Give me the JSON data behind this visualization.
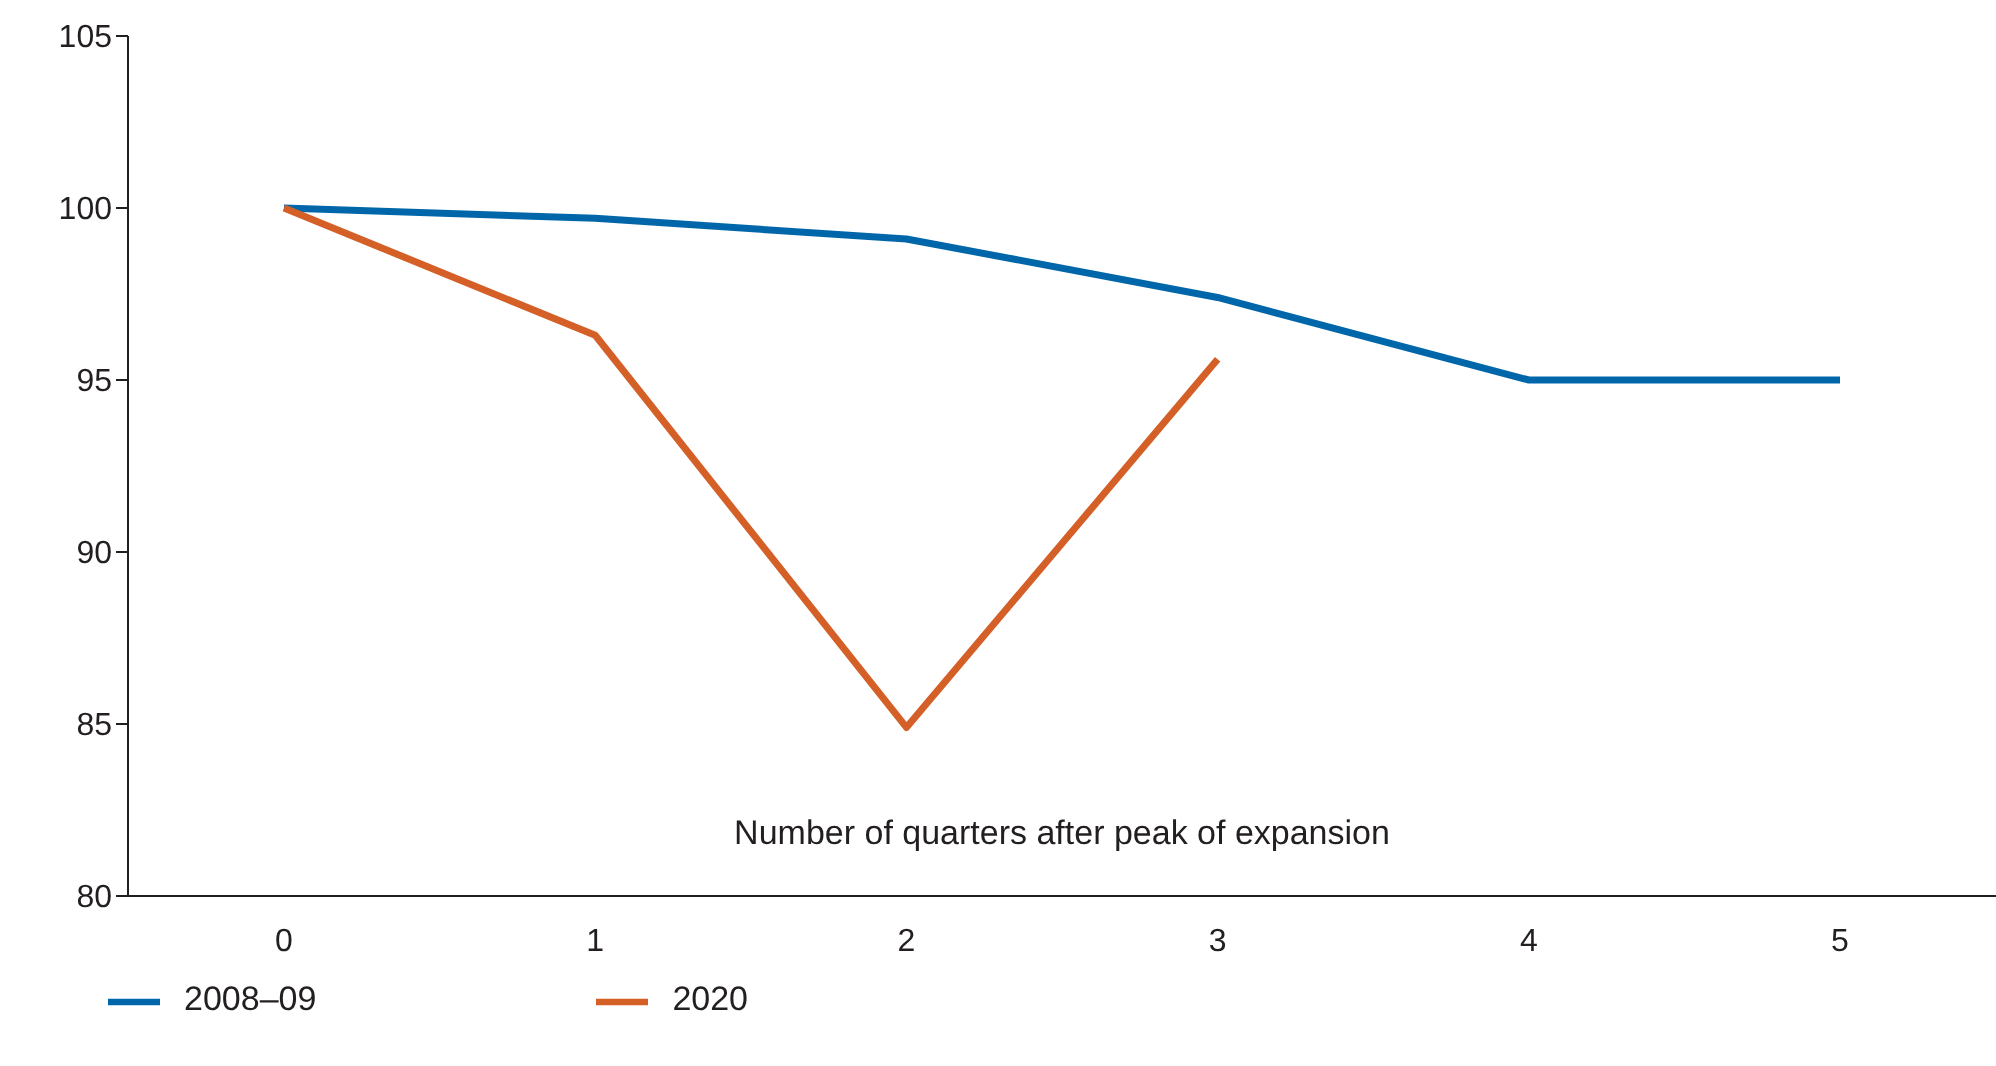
{
  "chart_data": {
    "type": "line",
    "xlabel": "Number of quarters after peak of expansion",
    "categories": [
      "0",
      "1",
      "2",
      "3",
      "4",
      "5"
    ],
    "series": [
      {
        "name": "2008–09",
        "color": "#0066aa",
        "values": [
          100,
          99.7,
          99.1,
          97.4,
          95.0,
          95.0
        ]
      },
      {
        "name": "2020",
        "color": "#d45f27",
        "values": [
          100,
          96.3,
          84.9,
          95.6,
          null,
          null
        ]
      }
    ],
    "ylim": [
      80,
      105
    ],
    "yticks": [
      80,
      85,
      90,
      95,
      100,
      105
    ],
    "grid": false,
    "legend": "bottom left",
    "marker": "none",
    "line_style": "solid"
  }
}
